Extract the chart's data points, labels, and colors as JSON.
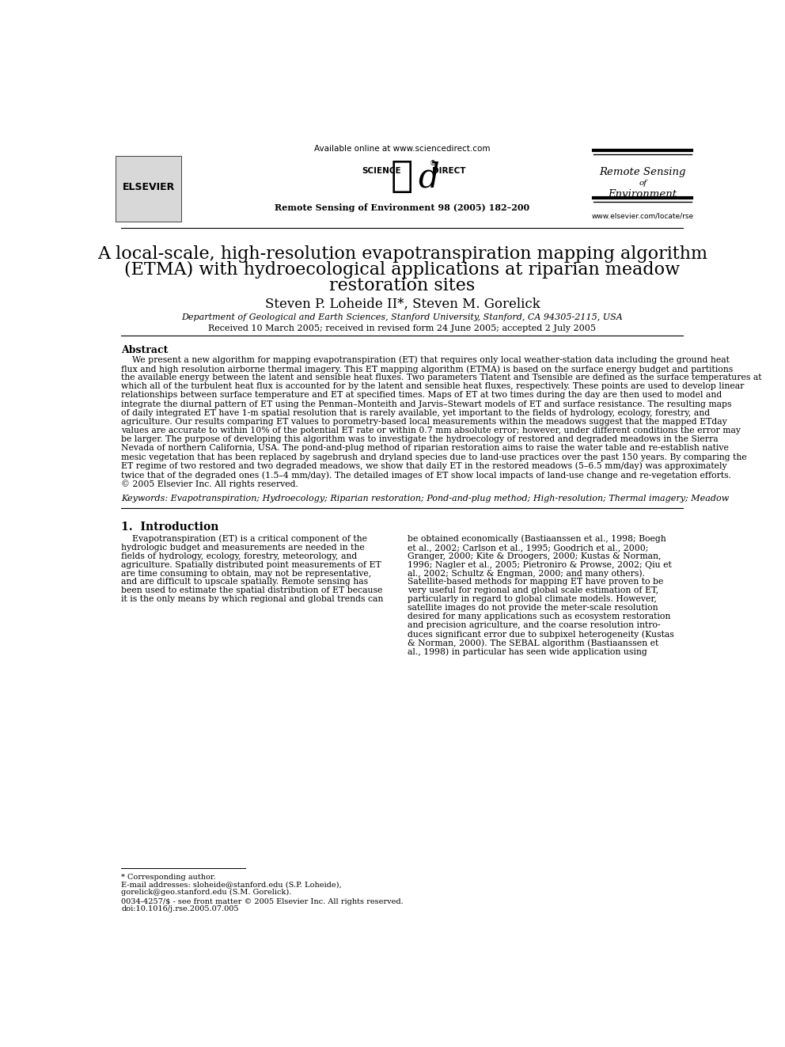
{
  "bg_color": "#ffffff",
  "text_color": "#000000",
  "header_available_online": "Available online at www.sciencedirect.com",
  "header_journal_ref": "Remote Sensing of Environment 98 (2005) 182–200",
  "header_journal_name_line1": "Remote Sensing",
  "header_journal_name_line2": "of",
  "header_journal_name_line3": "Environment",
  "header_website": "www.elsevier.com/locate/rse",
  "elsevier_text": "ELSEVIER",
  "title_line1": "A local-scale, high-resolution evapotranspiration mapping algorithm",
  "title_line2": "(ETMA) with hydroecological applications at riparian meadow",
  "title_line3": "restoration sites",
  "authors": "Steven P. Loheide II*, Steven M. Gorelick",
  "affiliation": "Department of Geological and Earth Sciences, Stanford University, Stanford, CA 94305-2115, USA",
  "received": "Received 10 March 2005; received in revised form 24 June 2005; accepted 2 July 2005",
  "abstract_label": "Abstract",
  "keywords_label": "Keywords:",
  "keywords_text": "Evapotranspiration; Hydroecology; Riparian restoration; Pond-and-plug method; High-resolution; Thermal imagery; Meadow",
  "section1_title": "1.  Introduction",
  "footnote_star": "* Corresponding author.",
  "footnote_email1": "E-mail addresses: sloheide@stanford.edu (S.P. Loheide),",
  "footnote_email2": "gorelick@geo.stanford.edu (S.M. Gorelick).",
  "footnote_copy1": "0034-4257/$ - see front matter © 2005 Elsevier Inc. All rights reserved.",
  "footnote_copy2": "doi:10.1016/j.rse.2005.07.005"
}
